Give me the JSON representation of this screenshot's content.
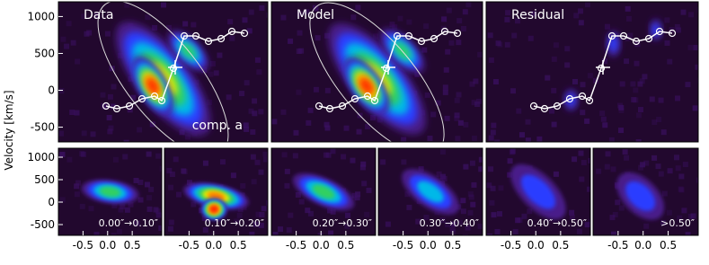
{
  "chart_data": [
    {
      "type": "heatmap",
      "title": "Data",
      "annotation": "comp. a",
      "ylabel": "Velocity [km/s]",
      "ylim": [
        -700,
        1200
      ],
      "yticks": [
        -500,
        0,
        500,
        1000
      ]
    },
    {
      "type": "heatmap",
      "title": "Model",
      "ylim": [
        -700,
        1200
      ]
    },
    {
      "type": "heatmap",
      "title": "Residual",
      "ylim": [
        -700,
        1200
      ]
    },
    {
      "type": "heatmap",
      "title": "0.00″→0.10″",
      "xlim": [
        -1.0,
        1.1
      ],
      "xticks": [
        -0.5,
        {
          "value": 0,
          "label": "0.0"
        },
        0.5
      ],
      "ylim": [
        -740,
        1200
      ],
      "yticks": [
        -500,
        0,
        500,
        1000
      ]
    },
    {
      "type": "heatmap",
      "title": "0.10″→0.20″",
      "xlim": [
        -1.0,
        1.1
      ],
      "xticks": [
        -0.5,
        {
          "value": 0,
          "label": "0.0"
        },
        0.5
      ],
      "ylim": [
        -740,
        1200
      ]
    },
    {
      "type": "heatmap",
      "title": "0.20″→0.30″",
      "xlim": [
        -1.0,
        1.1
      ],
      "xticks": [
        -0.5,
        {
          "value": 0,
          "label": "0.0"
        },
        0.5
      ],
      "ylim": [
        -740,
        1200
      ]
    },
    {
      "type": "heatmap",
      "title": "0.30″→0.40″",
      "xlim": [
        -1.0,
        1.1
      ],
      "xticks": [
        -0.5,
        {
          "value": 0,
          "label": "0.0"
        },
        0.5
      ],
      "ylim": [
        -740,
        1200
      ]
    },
    {
      "type": "heatmap",
      "title": "0.40″→0.50″",
      "xlim": [
        -1.0,
        1.1
      ],
      "xticks": [
        -0.5,
        {
          "value": 0,
          "label": "0.0"
        },
        0.5
      ],
      "ylim": [
        -740,
        1200
      ]
    },
    {
      "type": "heatmap",
      "title": ">0.50″",
      "xlim": [
        -1.0,
        1.1
      ],
      "xticks": [
        -0.5,
        {
          "value": 0,
          "label": "0.0"
        },
        0.5
      ],
      "ylim": [
        -740,
        1200
      ]
    }
  ]
}
